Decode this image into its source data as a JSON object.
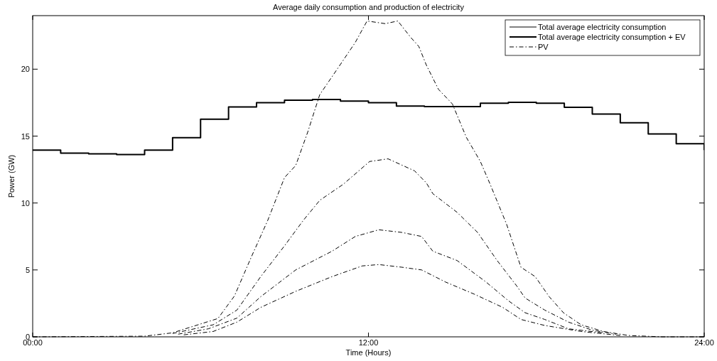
{
  "chart_data": {
    "type": "line",
    "title": "Average daily consumption and production of electricity",
    "xlabel": "Time (Hours)",
    "ylabel": "Power (GW)",
    "xlim": [
      0,
      24
    ],
    "xticks": [
      {
        "value": 0,
        "label": "00:00"
      },
      {
        "value": 12,
        "label": "12:00"
      },
      {
        "value": 24,
        "label": "24:00"
      }
    ],
    "ylim": [
      0,
      24
    ],
    "yticks": [
      0,
      5,
      10,
      15,
      20
    ],
    "grid": false,
    "legend": "top right",
    "marker": "none",
    "series": [
      {
        "name": "Total average electricity consumption",
        "color": "#000000",
        "line_style": "solid"
      },
      {
        "name": "Total average electricity consumption + EV",
        "type": "step",
        "color": "#000000",
        "line_style": "solid",
        "x": [
          0,
          1,
          2,
          3,
          4,
          5,
          6,
          7,
          8,
          9,
          10,
          11,
          12,
          13,
          14,
          15,
          16,
          17,
          18,
          19,
          20,
          21,
          22,
          23,
          24
        ],
        "values": [
          13.95,
          13.72,
          13.67,
          13.62,
          13.95,
          14.88,
          16.26,
          17.18,
          17.5,
          17.68,
          17.73,
          17.62,
          17.5,
          17.25,
          17.2,
          17.2,
          17.45,
          17.52,
          17.45,
          17.15,
          16.65,
          16.0,
          15.16,
          14.43,
          13.95
        ]
      },
      {
        "name": "PV",
        "color": "#000000",
        "line_style": "dashdot",
        "x": [
          0,
          4,
          5,
          6.62,
          7.21,
          7.8,
          8.4,
          9.0,
          9.4,
          9.83,
          10.26,
          10.85,
          11.53,
          11.95,
          12.6,
          13.05,
          13.5,
          13.8,
          14.07,
          14.5,
          15.0,
          15.5,
          16.0,
          16.35,
          16.94,
          17.45,
          17.96,
          18.46,
          18.97,
          19.6,
          20.4,
          21.3,
          22.5,
          24
        ],
        "values": [
          0,
          0.05,
          0.3,
          1.37,
          3.05,
          5.9,
          8.7,
          11.9,
          12.8,
          15.3,
          18.1,
          19.9,
          22.0,
          23.6,
          23.4,
          23.6,
          22.4,
          21.7,
          20.3,
          18.5,
          17.4,
          14.9,
          13.1,
          11.4,
          8.4,
          5.2,
          4.5,
          3.0,
          1.8,
          0.9,
          0.4,
          0.1,
          0,
          0
        ]
      },
      {
        "color": "#000000",
        "line_style": "dashdot",
        "x": [
          5,
          6.45,
          7.3,
          8.15,
          9.0,
          9.67,
          10.26,
          11.1,
          12.04,
          12.7,
          13.65,
          14.07,
          14.3,
          15.17,
          15.9,
          16.6,
          17.3,
          17.6,
          18.3,
          19.15,
          20.0,
          20.85
        ],
        "values": [
          0.25,
          0.9,
          2.0,
          4.5,
          6.8,
          8.7,
          10.2,
          11.4,
          13.1,
          13.3,
          12.4,
          11.5,
          10.7,
          9.3,
          7.8,
          5.7,
          3.8,
          2.9,
          2.0,
          1.1,
          0.5,
          0.2
        ]
      },
      {
        "color": "#000000",
        "line_style": "dashdot",
        "x": [
          5.2,
          6.28,
          7.3,
          8.15,
          9.4,
          10.7,
          11.53,
          12.37,
          13.2,
          13.9,
          14.3,
          15.17,
          16.2,
          17.0,
          17.6,
          18.3,
          19.15,
          20.4
        ],
        "values": [
          0.2,
          0.6,
          1.4,
          3.0,
          5.0,
          6.4,
          7.5,
          8.0,
          7.8,
          7.5,
          6.4,
          5.7,
          4.1,
          2.7,
          1.8,
          1.3,
          0.6,
          0.3
        ]
      },
      {
        "color": "#000000",
        "line_style": "dashdot",
        "x": [
          5.4,
          6.45,
          7.3,
          8.15,
          9.4,
          10.7,
          11.78,
          12.37,
          13.2,
          13.9,
          14.75,
          15.77,
          16.8,
          17.45,
          18.3,
          19.6,
          21
        ],
        "values": [
          0.15,
          0.4,
          1.1,
          2.2,
          3.4,
          4.5,
          5.3,
          5.4,
          5.2,
          5.0,
          4.1,
          3.2,
          2.2,
          1.3,
          0.85,
          0.4,
          0.1
        ]
      }
    ]
  }
}
